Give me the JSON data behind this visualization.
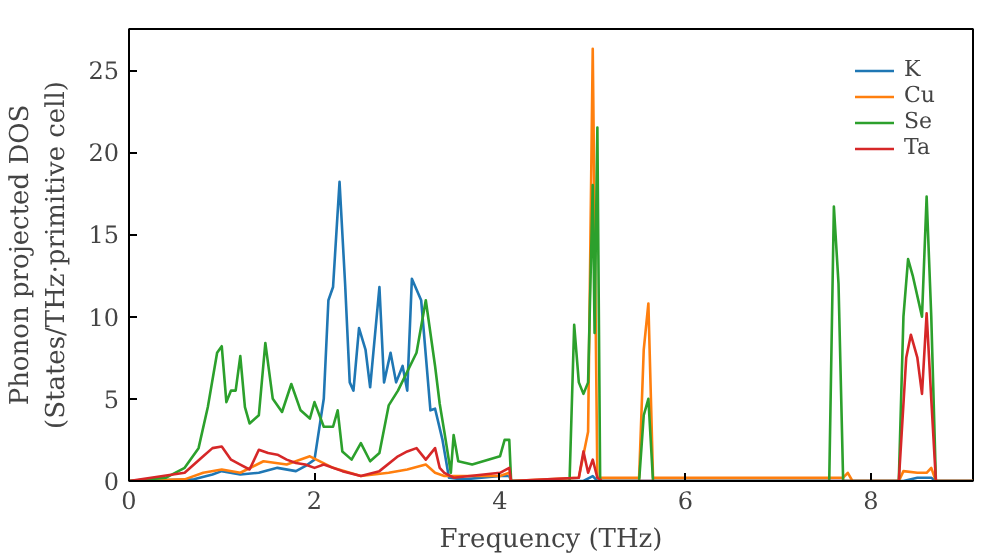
{
  "chart_data": {
    "type": "line",
    "xlabel": "Frequency (THz)",
    "ylabel": "Phonon projected DOS\n(States/THz·primitive cell)",
    "xlim": [
      0,
      9.1
    ],
    "ylim": [
      0,
      27.5
    ],
    "xticks": [
      0,
      2,
      4,
      6,
      8
    ],
    "yticks": [
      0,
      5,
      10,
      15,
      20,
      25
    ],
    "grid": false,
    "legend": "top right",
    "marker": "none",
    "line_style": "solid",
    "series": [
      {
        "name": "K",
        "color": "#1f77b4",
        "x": [
          0,
          0.7,
          0.9,
          1.0,
          1.2,
          1.4,
          1.6,
          1.8,
          1.9,
          2.0,
          2.1,
          2.15,
          2.2,
          2.27,
          2.33,
          2.38,
          2.42,
          2.48,
          2.55,
          2.6,
          2.7,
          2.75,
          2.82,
          2.88,
          2.95,
          3.0,
          3.05,
          3.15,
          3.25,
          3.3,
          3.38,
          3.45,
          3.6,
          4.0,
          4.1,
          4.12,
          4.9,
          5.0,
          5.05,
          8.35,
          8.5,
          8.65,
          8.7,
          9.1
        ],
        "values": [
          0,
          0.1,
          0.4,
          0.6,
          0.4,
          0.5,
          0.8,
          0.6,
          0.9,
          1.3,
          5,
          11,
          11.8,
          18.2,
          12,
          6,
          5.5,
          9.3,
          8,
          5.7,
          11.8,
          6,
          7.8,
          6,
          7,
          5.5,
          12.3,
          11,
          4.3,
          4.4,
          2.5,
          0.2,
          0.1,
          0.3,
          0.3,
          0,
          0,
          0.3,
          0,
          0,
          0.2,
          0.2,
          0,
          0
        ]
      },
      {
        "name": "Cu",
        "color": "#ff7f0e",
        "x": [
          0,
          0.6,
          0.8,
          1.0,
          1.2,
          1.45,
          1.7,
          1.95,
          2.2,
          2.5,
          2.8,
          3.0,
          3.2,
          3.3,
          3.4,
          4.0,
          4.1,
          4.12,
          4.85,
          4.95,
          5.0,
          5.05,
          5.5,
          5.55,
          5.6,
          5.65,
          7.7,
          7.75,
          7.8,
          8.3,
          8.35,
          8.5,
          8.6,
          8.65,
          8.7,
          9.1
        ],
        "values": [
          0,
          0.1,
          0.5,
          0.7,
          0.5,
          1.2,
          1.0,
          1.5,
          0.8,
          0.3,
          0.5,
          0.7,
          1.0,
          0.5,
          0.3,
          0.3,
          0.5,
          0,
          0.2,
          3,
          26.3,
          0.2,
          0.2,
          8,
          10.8,
          0.2,
          0.2,
          0.5,
          0,
          0,
          0.6,
          0.5,
          0.5,
          0.8,
          0,
          0
        ]
      },
      {
        "name": "Se",
        "color": "#2ca02c",
        "x": [
          0,
          0.4,
          0.6,
          0.75,
          0.85,
          0.95,
          1.0,
          1.05,
          1.1,
          1.15,
          1.2,
          1.25,
          1.3,
          1.4,
          1.47,
          1.55,
          1.65,
          1.75,
          1.85,
          1.95,
          2.0,
          2.1,
          2.2,
          2.25,
          2.3,
          2.4,
          2.5,
          2.6,
          2.7,
          2.8,
          2.9,
          3.1,
          3.2,
          3.3,
          3.35,
          3.4,
          3.47,
          3.5,
          3.55,
          3.7,
          4.0,
          4.05,
          4.1,
          4.12,
          4.75,
          4.8,
          4.85,
          4.9,
          4.95,
          5.0,
          5.02,
          5.05,
          5.08,
          5.5,
          5.55,
          5.6,
          5.65,
          7.55,
          7.6,
          7.65,
          7.7,
          8.3,
          8.35,
          8.4,
          8.45,
          8.55,
          8.6,
          8.65,
          8.7,
          9.1
        ],
        "values": [
          0,
          0.2,
          0.8,
          2,
          4.5,
          7.8,
          8.2,
          4.8,
          5.5,
          5.5,
          7.6,
          4.5,
          3.5,
          4,
          8.4,
          5,
          4.2,
          5.9,
          4.3,
          3.8,
          4.8,
          3.3,
          3.3,
          4.3,
          1.8,
          1.3,
          2.3,
          1.2,
          1.7,
          4.6,
          5.5,
          7.8,
          11,
          7,
          4.7,
          3,
          0.5,
          2.8,
          1.2,
          1.0,
          1.5,
          2.5,
          2.5,
          0,
          0,
          9.5,
          6,
          5.3,
          6,
          18,
          9,
          21.5,
          0,
          0,
          4,
          5,
          0,
          0,
          16.7,
          12,
          0,
          0,
          10,
          13.5,
          12.5,
          10,
          17.3,
          10,
          0,
          0
        ]
      },
      {
        "name": "Ta",
        "color": "#d62728",
        "x": [
          0,
          0.6,
          0.8,
          0.9,
          1.0,
          1.1,
          1.2,
          1.3,
          1.4,
          1.5,
          1.6,
          1.7,
          1.8,
          1.9,
          2.0,
          2.1,
          2.3,
          2.5,
          2.7,
          2.9,
          3.0,
          3.1,
          3.2,
          3.3,
          3.35,
          3.4,
          3.5,
          4.0,
          4.1,
          4.12,
          4.85,
          4.9,
          4.95,
          5.0,
          5.05,
          5.1,
          8.3,
          8.38,
          8.43,
          8.5,
          8.55,
          8.6,
          8.65,
          8.7,
          9.1
        ],
        "values": [
          0,
          0.5,
          1.5,
          2.0,
          2.1,
          1.3,
          1.0,
          0.7,
          1.9,
          1.7,
          1.6,
          1.3,
          1.1,
          1.0,
          0.8,
          1.0,
          0.6,
          0.3,
          0.6,
          1.5,
          1.8,
          2.0,
          1.3,
          2.0,
          0.8,
          0.5,
          0.2,
          0.5,
          0.8,
          0,
          0.2,
          1.8,
          0.5,
          1.3,
          0.2,
          0,
          0,
          7.5,
          8.9,
          7.5,
          5.3,
          10.2,
          5,
          0,
          0
        ]
      }
    ]
  }
}
